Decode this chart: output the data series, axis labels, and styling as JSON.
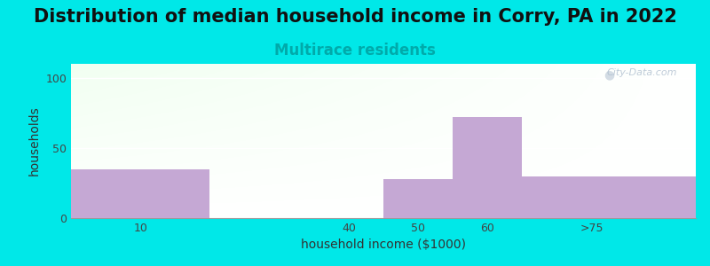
{
  "title": "Distribution of median household income in Corry, PA in 2022",
  "subtitle": "Multirace residents",
  "xlabel": "household income ($1000)",
  "ylabel": "households",
  "categories": [
    "10",
    "40",
    "50",
    "60",
    ">75"
  ],
  "values": [
    35,
    0,
    28,
    72,
    30
  ],
  "bar_color": "#c5a8d4",
  "ylim": [
    0,
    110
  ],
  "yticks": [
    0,
    50,
    100
  ],
  "background_outer": "#00e8e8",
  "title_fontsize": 15,
  "subtitle_fontsize": 12,
  "subtitle_color": "#00aaaa",
  "axis_label_fontsize": 10,
  "watermark_text": "City-Data.com",
  "tick_label_positions": [
    10,
    40,
    50,
    60,
    75
  ],
  "bar_lefts": [
    0,
    20,
    45,
    55,
    65
  ],
  "bar_rights": [
    20,
    45,
    55,
    65,
    90
  ],
  "xlim": [
    0,
    90
  ]
}
